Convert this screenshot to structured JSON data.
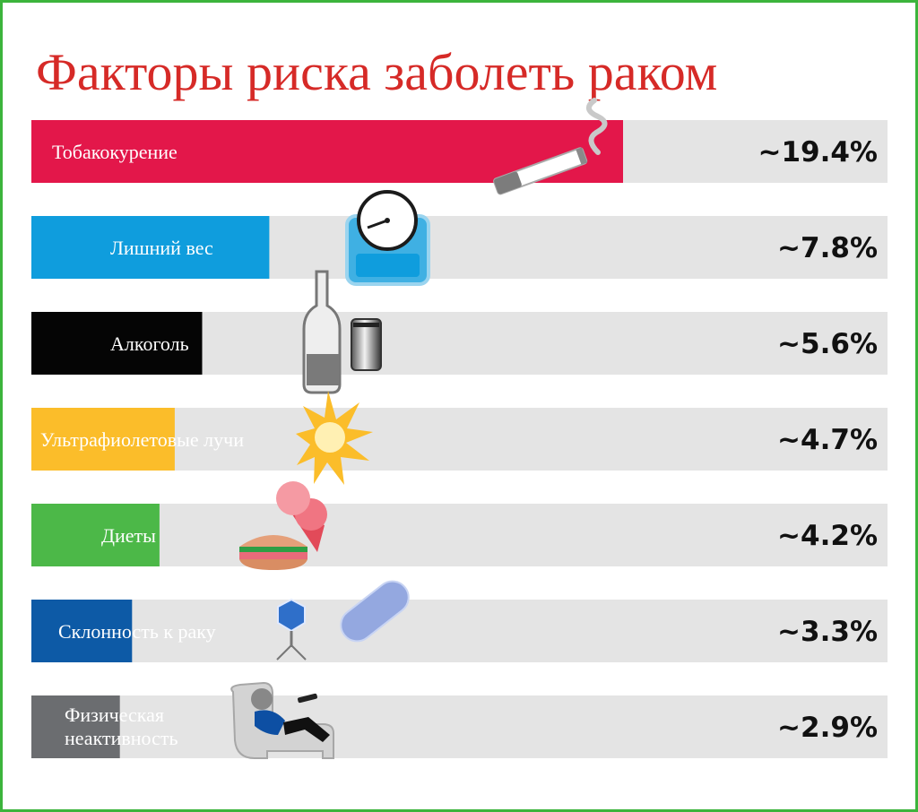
{
  "chart_data": {
    "type": "bar",
    "title": "Факторы риска заболеть раком",
    "categories": [
      "Тобакокурение",
      "Лишний вес",
      "Алкоголь",
      "Ультрафиолетовые лучи",
      "Диеты",
      "Склонность к раку",
      "Физическая неактивность"
    ],
    "label_lines": [
      [
        "Тобакокурение"
      ],
      [
        "Лишний вес"
      ],
      [
        "Алкоголь"
      ],
      [
        "Ультрафиолетовые лучи"
      ],
      [
        "Диеты"
      ],
      [
        "Склонность к раку"
      ],
      [
        "Физическая",
        "неактивность"
      ]
    ],
    "values": [
      19.4,
      7.8,
      5.6,
      4.7,
      4.2,
      3.3,
      2.9
    ],
    "value_labels": [
      "~19.4%",
      "~7.8%",
      "~5.6%",
      "~4.7%",
      "~4.2%",
      "~3.3%",
      "~2.9%"
    ],
    "colors": [
      "#e3174a",
      "#0f9ddd",
      "#050505",
      "#fbbd2a",
      "#4cb848",
      "#0d5aa6",
      "#6b6d70"
    ],
    "track_color": "#e4e4e4",
    "xlim": [
      0,
      30
    ],
    "xlabel": "",
    "ylabel": "",
    "icons": [
      "cigarette-icon",
      "scale-icon",
      "bottle-and-can-icon",
      "sun-burst-icon",
      "burger-and-icecream-icon",
      "virus-and-bacteria-icon",
      "person-on-couch-icon"
    ]
  }
}
